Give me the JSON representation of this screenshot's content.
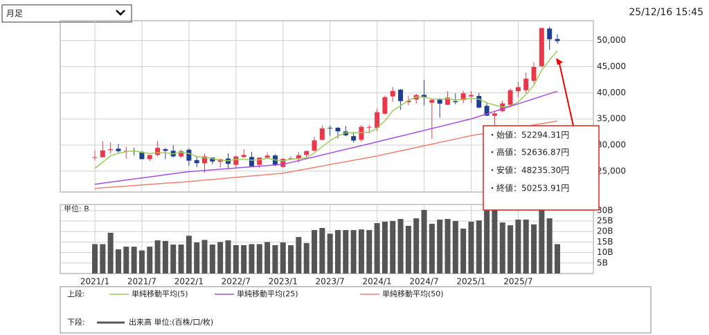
{
  "ui": {
    "dropdown": "月足",
    "timestamp": "25/12/16 15:45",
    "tooltip": [
      "・始値：52294.31円",
      "・高値：52636.87円",
      "・安値：48235.30円",
      "・終値：50253.91円"
    ],
    "legend_upper": "上段:",
    "legend_lower": "下段:"
  },
  "chart_data": [
    {
      "type": "candlestick",
      "up_color": "#e8394a",
      "down_color": "#1f3f8f",
      "grid": true,
      "ylim": [
        21000,
        53800
      ],
      "yticks": [
        {
          "value": 25000,
          "label": "25,000"
        },
        {
          "value": 30000,
          "label": "30,000"
        },
        {
          "value": 35000,
          "label": "35,000"
        },
        {
          "value": 40000,
          "label": "40,000"
        },
        {
          "value": 45000,
          "label": "45,000"
        },
        {
          "value": 50000,
          "label": "50,000"
        }
      ],
      "open": [
        27575,
        27664,
        29000,
        29300,
        28800,
        28900,
        28700,
        27300,
        28100,
        29200,
        28900,
        27800,
        29098,
        27100,
        26500,
        27600,
        26800,
        27400,
        26200,
        27700,
        27700,
        26200,
        27600,
        28000,
        25800,
        27400,
        27400,
        28100,
        28900,
        31000,
        33300,
        33300,
        32600,
        31700,
        31000,
        33400,
        33300,
        36000,
        39300,
        40600,
        38200,
        38700,
        39600,
        38100,
        38700,
        37700,
        38400,
        38600,
        39300,
        39400,
        37500,
        35600,
        36500,
        37700,
        40300,
        40500,
        42300,
        45100,
        52294.31,
        50300
      ],
      "high": [
        28979,
        30714,
        30485,
        30208,
        29685,
        29480,
        28852,
        28198,
        30795,
        29489,
        29960,
        29121,
        29388,
        27880,
        28338,
        27580,
        27369,
        28389,
        27994,
        29222,
        28659,
        27587,
        28502,
        28226,
        27500,
        27821,
        28623,
        28879,
        31560,
        33772,
        33753,
        33488,
        33634,
        32533,
        33853,
        33853,
        36984,
        39426,
        41087,
        40697,
        39437,
        39788,
        42426,
        38700,
        38991,
        40257,
        39885,
        40398,
        40288,
        40000,
        38220,
        36500,
        38492,
        40824,
        42065,
        43876,
        45852,
        52411,
        52636.87,
        51200
      ],
      "low": [
        27056,
        27602,
        28308,
        28419,
        27385,
        28010,
        27272,
        26954,
        27800,
        27293,
        27588,
        27600,
        26044,
        25776,
        24681,
        26304,
        25688,
        25520,
        25661,
        27536,
        25937,
        25621,
        27300,
        25953,
        25661,
        27100,
        26632,
        27427,
        28800,
        30900,
        31791,
        31275,
        31674,
        30487,
        30600,
        32205,
        32693,
        35800,
        38271,
        36733,
        37617,
        37950,
        37611,
        31156,
        35247,
        37651,
        37800,
        37959,
        38055,
        37081,
        35526,
        30792,
        36300,
        37200,
        39100,
        39900,
        41800,
        44800,
        48235.3,
        49400
      ],
      "close": [
        27663,
        28966,
        29179,
        28813,
        28860,
        28792,
        27284,
        28090,
        29453,
        28892,
        27822,
        28792,
        27002,
        26526,
        27821,
        26848,
        27279,
        26393,
        27801,
        28091,
        25937,
        27587,
        27968,
        26094,
        27327,
        27446,
        28041,
        28856,
        30887,
        33189,
        33172,
        32619,
        31857,
        30858,
        33486,
        33464,
        36286,
        39166,
        40369,
        38405,
        38487,
        39583,
        39101,
        38647,
        37919,
        39081,
        38208,
        39894,
        39572,
        37155,
        35617,
        36045,
        37965,
        40487,
        41069,
        42718,
        44932,
        52411,
        50253.91,
        49900
      ],
      "series": [
        {
          "name": "単純移動平均(5)",
          "color": "#9acd5a",
          "values": [
            25541,
            26697,
            27937,
            28413,
            28696,
            28922,
            28586,
            28368,
            28496,
            28502,
            28308,
            28610,
            28392,
            27807,
            27593,
            27398,
            27095,
            26973,
            27228,
            27282,
            27100,
            27162,
            27477,
            27135,
            26983,
            27284,
            27375,
            27553,
            28511,
            29684,
            30829,
            31745,
            32345,
            32339,
            32398,
            32457,
            33190,
            34652,
            36554,
            37538,
            38543,
            39202,
            39189,
            38845,
            38747,
            38866,
            38591,
            38750,
            38935,
            38782,
            38089,
            37657,
            37271,
            37454,
            38237,
            39657,
            41434,
            44323,
            46277,
            48043
          ]
        },
        {
          "name": "単純移動平均(25)",
          "color": "#a64de0",
          "values": [
            22500,
            22700,
            22900,
            23100,
            23300,
            23500,
            23700,
            23900,
            24100,
            24300,
            24500,
            24700,
            24900,
            25020,
            25130,
            25250,
            25370,
            25480,
            25600,
            25720,
            25830,
            25950,
            26070,
            26180,
            26300,
            26660,
            27020,
            27380,
            27730,
            28090,
            28450,
            28810,
            29170,
            29520,
            29880,
            30240,
            30600,
            30970,
            31330,
            31700,
            32070,
            32430,
            32800,
            33170,
            33530,
            33900,
            34270,
            34630,
            35000,
            35480,
            35960,
            36450,
            36930,
            37410,
            37890,
            38370,
            38850,
            39340,
            39820,
            40300
          ]
        },
        {
          "name": "単純移動平均(50)",
          "color": "#f08070",
          "values": [
            21700,
            21810,
            21920,
            22030,
            22130,
            22240,
            22350,
            22460,
            22570,
            22680,
            22780,
            22890,
            23000,
            23130,
            23270,
            23400,
            23530,
            23670,
            23800,
            23930,
            24070,
            24200,
            24330,
            24470,
            24600,
            24880,
            25150,
            25430,
            25700,
            25980,
            26250,
            26530,
            26800,
            27080,
            27350,
            27630,
            27900,
            28230,
            28550,
            28880,
            29200,
            29530,
            29850,
            30180,
            30500,
            30830,
            31150,
            31480,
            31800,
            32050,
            32310,
            32560,
            32820,
            33070,
            33330,
            33580,
            33840,
            34090,
            34350,
            34600
          ]
        }
      ]
    },
    {
      "type": "bar",
      "ylabel": "単位: B",
      "grid": true,
      "ylim": [
        0,
        32.9
      ],
      "yticks": [
        {
          "value": 5,
          "label": "5B"
        },
        {
          "value": 10,
          "label": "10B"
        },
        {
          "value": 15,
          "label": "15B"
        },
        {
          "value": 20,
          "label": "20B"
        },
        {
          "value": 25,
          "label": "25B"
        },
        {
          "value": 30,
          "label": "30B"
        }
      ],
      "categories": [
        "2021/1",
        null,
        null,
        null,
        null,
        null,
        "2021/7",
        null,
        null,
        null,
        null,
        null,
        "2022/1",
        null,
        null,
        null,
        null,
        null,
        "2022/7",
        null,
        null,
        null,
        null,
        null,
        "2023/1",
        null,
        null,
        null,
        null,
        null,
        "2023/7",
        null,
        null,
        null,
        null,
        null,
        "2024/1",
        null,
        null,
        null,
        null,
        null,
        "2024/7",
        null,
        null,
        null,
        null,
        null,
        "2025/1",
        null,
        null,
        null,
        null,
        null,
        "2025/7",
        null,
        null,
        null,
        null,
        null
      ],
      "series": [
        {
          "name": "出来高 単位:(百株/口/枚)",
          "color": "#555555",
          "values": [
            14,
            14,
            19.4,
            11.5,
            12.8,
            12.8,
            11,
            12.8,
            15.8,
            15.5,
            13.8,
            13.8,
            18,
            14.8,
            16,
            13.8,
            15,
            15.8,
            13.5,
            13.5,
            14,
            14,
            15,
            13.5,
            14.8,
            13.5,
            17.4,
            14.5,
            20.7,
            21.7,
            19,
            20.7,
            20.7,
            20.7,
            21,
            20.7,
            24,
            24.7,
            25,
            26,
            22.7,
            26.3,
            30.3,
            23.7,
            25.7,
            26,
            25,
            21.4,
            24.7,
            25.3,
            30,
            30.6,
            24.3,
            23,
            25.7,
            25.7,
            23.4,
            30.6,
            26.3,
            14
          ]
        }
      ]
    }
  ]
}
